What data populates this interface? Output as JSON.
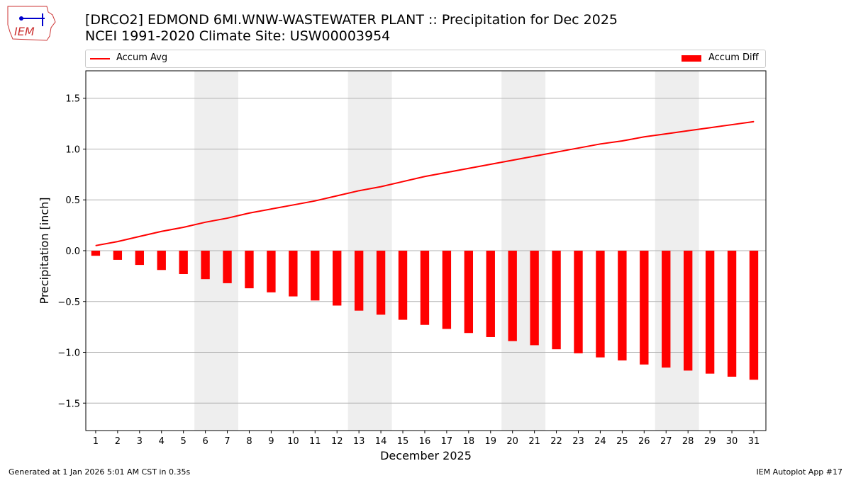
{
  "header": {
    "title_line1": "[DRCO2] EDMOND 6MI.WNW-WASTEWATER PLANT :: Precipitation for Dec 2025",
    "title_line2": "NCEI 1991-2020 Climate Site: USW00003954",
    "logo_text": "IEM"
  },
  "footer": {
    "left": "Generated at 1 Jan 2026 5:01 AM CST in 0.35s",
    "right": "IEM Autoplot App #17"
  },
  "chart_data": {
    "type": "bar",
    "xlabel": "December 2025",
    "ylabel": "Precipitation [inch]",
    "categories": [
      "1",
      "2",
      "3",
      "4",
      "5",
      "6",
      "7",
      "8",
      "9",
      "10",
      "11",
      "12",
      "13",
      "14",
      "15",
      "16",
      "17",
      "18",
      "19",
      "20",
      "21",
      "22",
      "23",
      "24",
      "25",
      "26",
      "27",
      "28",
      "29",
      "30",
      "31"
    ],
    "ylim": [
      -1.77,
      1.77
    ],
    "yticks": [
      -1.5,
      -1.0,
      -0.5,
      0.0,
      0.5,
      1.0,
      1.5
    ],
    "ytick_labels": [
      "−1.5",
      "−1.0",
      "−0.5",
      "0.0",
      "0.5",
      "1.0",
      "1.5"
    ],
    "grid": true,
    "legend_placement": "top",
    "weekend_shading": [
      [
        6,
        7
      ],
      [
        13,
        14
      ],
      [
        20,
        21
      ],
      [
        27,
        28
      ]
    ],
    "series": [
      {
        "name": "Accum Avg",
        "type": "line",
        "color": "#ff0000",
        "values": [
          0.05,
          0.09,
          0.14,
          0.19,
          0.23,
          0.28,
          0.32,
          0.37,
          0.41,
          0.45,
          0.49,
          0.54,
          0.59,
          0.63,
          0.68,
          0.73,
          0.77,
          0.81,
          0.85,
          0.89,
          0.93,
          0.97,
          1.01,
          1.05,
          1.08,
          1.12,
          1.15,
          1.18,
          1.21,
          1.24,
          1.27
        ]
      },
      {
        "name": "Accum Diff",
        "type": "bar",
        "color": "#ff0000",
        "values": [
          -0.05,
          -0.09,
          -0.14,
          -0.19,
          -0.23,
          -0.28,
          -0.32,
          -0.37,
          -0.41,
          -0.45,
          -0.49,
          -0.54,
          -0.59,
          -0.63,
          -0.68,
          -0.73,
          -0.77,
          -0.81,
          -0.85,
          -0.89,
          -0.93,
          -0.97,
          -1.01,
          -1.05,
          -1.08,
          -1.12,
          -1.15,
          -1.18,
          -1.21,
          -1.24,
          -1.27
        ]
      }
    ]
  }
}
